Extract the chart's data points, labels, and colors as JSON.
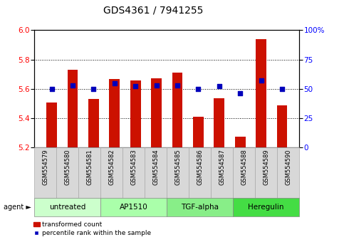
{
  "title": "GDS4361 / 7941255",
  "samples": [
    "GSM554579",
    "GSM554580",
    "GSM554581",
    "GSM554582",
    "GSM554583",
    "GSM554584",
    "GSM554585",
    "GSM554586",
    "GSM554587",
    "GSM554588",
    "GSM554589",
    "GSM554590"
  ],
  "bar_values": [
    5.505,
    5.73,
    5.53,
    5.665,
    5.655,
    5.67,
    5.71,
    5.41,
    5.535,
    5.275,
    5.94,
    5.485
  ],
  "dot_values": [
    50,
    53,
    50,
    55,
    52,
    53,
    53,
    50,
    52,
    46,
    57,
    50
  ],
  "ymin": 5.2,
  "ymax": 6.0,
  "yticks": [
    5.2,
    5.4,
    5.6,
    5.8,
    6.0
  ],
  "y2min": 0,
  "y2max": 100,
  "y2ticks": [
    0,
    25,
    50,
    75,
    100
  ],
  "bar_color": "#cc1100",
  "dot_color": "#0000bb",
  "grid_color": "#000000",
  "agent_groups": [
    {
      "label": "untreated",
      "start": 0,
      "end": 3,
      "color": "#ccffcc"
    },
    {
      "label": "AP1510",
      "start": 3,
      "end": 6,
      "color": "#aaffaa"
    },
    {
      "label": "TGF-alpha",
      "start": 6,
      "end": 9,
      "color": "#88ee88"
    },
    {
      "label": "Heregulin",
      "start": 9,
      "end": 12,
      "color": "#44dd44"
    }
  ],
  "legend_bar_label": "transformed count",
  "legend_dot_label": "percentile rank within the sample",
  "agent_label": "agent",
  "bar_width": 0.5,
  "title_fontsize": 10,
  "tick_fontsize": 7.5,
  "label_fontsize": 6,
  "group_fontsize": 7.5
}
